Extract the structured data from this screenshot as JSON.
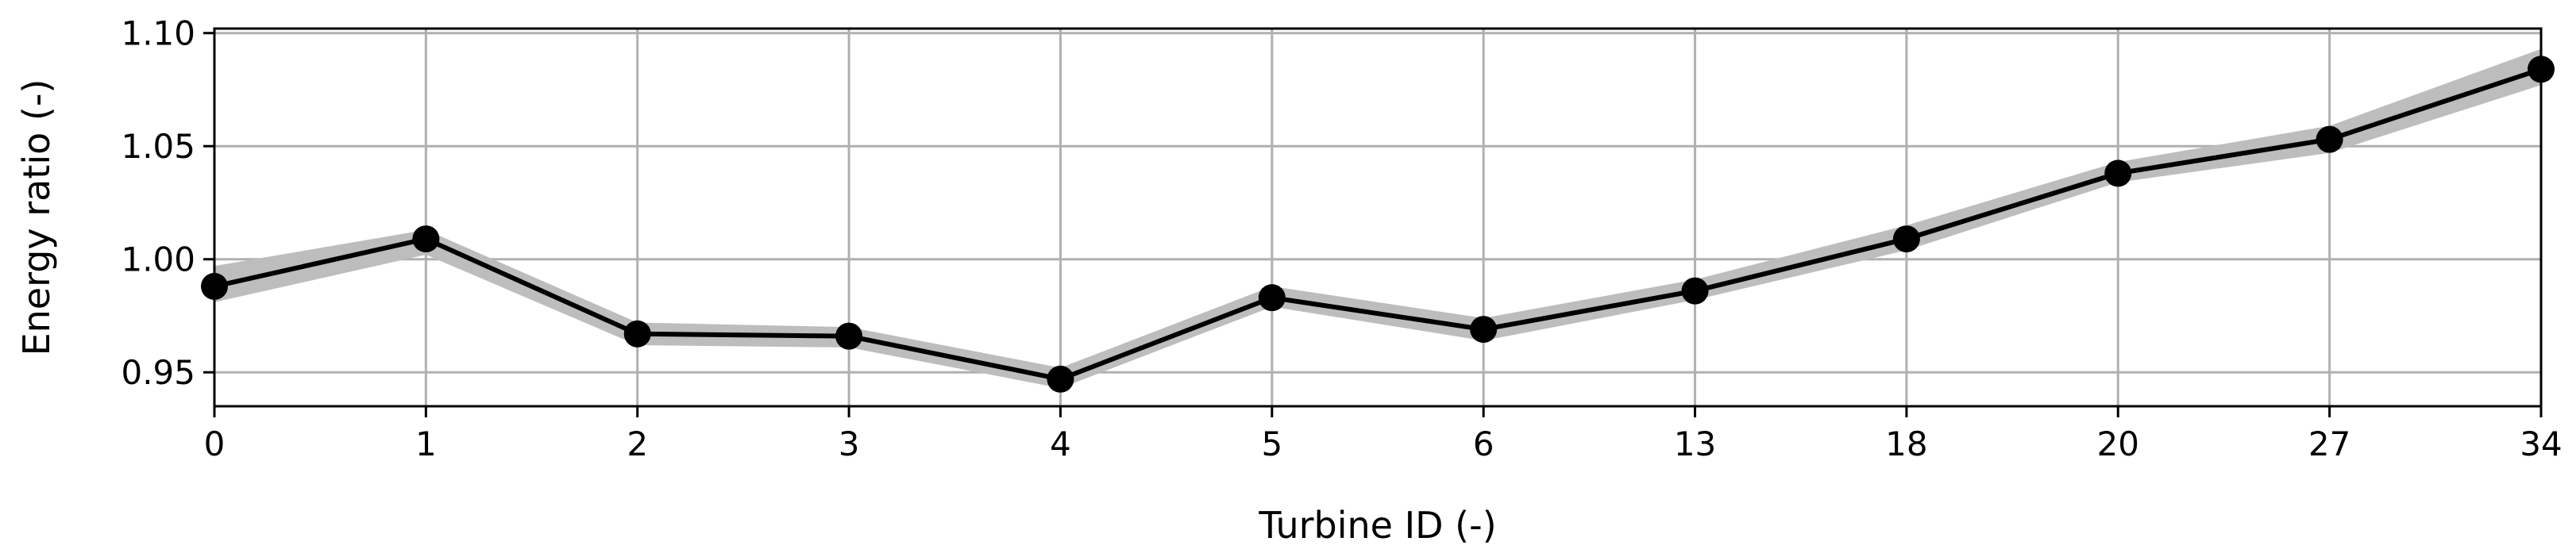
{
  "chart_data": {
    "type": "line",
    "title": "",
    "xlabel": "Turbine ID (-)",
    "ylabel": "Energy ratio (-)",
    "categories": [
      "0",
      "1",
      "2",
      "3",
      "4",
      "5",
      "6",
      "13",
      "18",
      "20",
      "27",
      "34"
    ],
    "series": [
      {
        "values": [
          0.988,
          1.009,
          0.967,
          0.966,
          0.947,
          0.983,
          0.969,
          0.986,
          1.009,
          1.038,
          1.053,
          1.084
        ],
        "band_lower": [
          0.981,
          1.002,
          0.962,
          0.961,
          0.943,
          0.979,
          0.964,
          0.982,
          1.004,
          1.034,
          1.047,
          1.077
        ],
        "band_upper": [
          0.997,
          1.013,
          0.972,
          0.97,
          0.952,
          0.988,
          0.974,
          0.991,
          1.015,
          1.043,
          1.059,
          1.093
        ]
      }
    ],
    "yticks": [
      "0.95",
      "1.00",
      "1.05",
      "1.10"
    ],
    "ytick_values": [
      0.95,
      1.0,
      1.05,
      1.1
    ],
    "ylim": [
      0.935,
      1.102
    ],
    "grid": true,
    "legend": "none",
    "colors": {
      "line": "#000000",
      "band": "#bdbdbd",
      "grid": "#b0b0b0"
    }
  }
}
